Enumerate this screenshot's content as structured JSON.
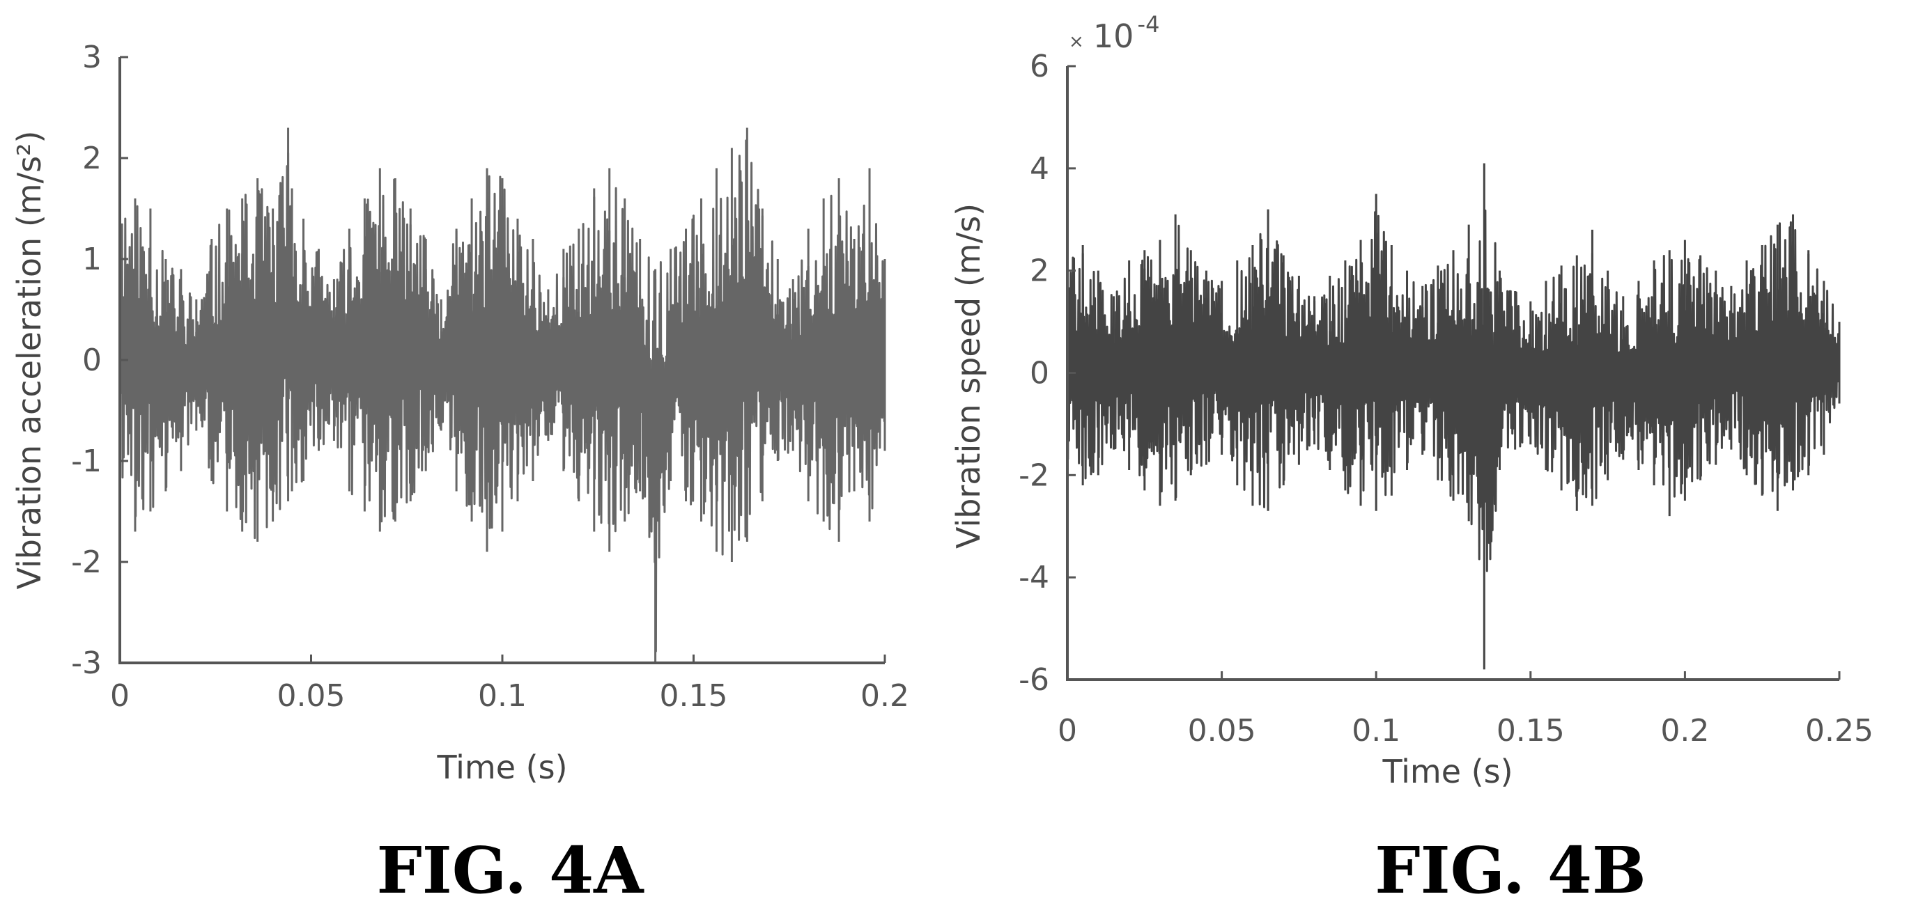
{
  "chart_data": [
    {
      "type": "line",
      "figure_label": "FIG. 4A",
      "xlabel": "Time (s)",
      "ylabel": "Vibration acceleration (m/s²)",
      "xlim": [
        0,
        0.2
      ],
      "ylim": [
        -3,
        3
      ],
      "x_ticks": [
        0,
        0.05,
        0.1,
        0.15,
        0.2
      ],
      "x_tick_labels": [
        "0",
        "0.05",
        "0.1",
        "0.15",
        "0.2"
      ],
      "y_ticks": [
        -3,
        -2,
        -1,
        0,
        1,
        2,
        3
      ],
      "y_tick_labels": [
        "-3",
        "-2",
        "-1",
        "0",
        "1",
        "2",
        "3"
      ],
      "color": "#666666",
      "series": [
        {
          "x": [
            0,
            0.004,
            0.008,
            0.012,
            0.016,
            0.02,
            0.024,
            0.028,
            0.032,
            0.036,
            0.04,
            0.044,
            0.045,
            0.048,
            0.052,
            0.056,
            0.06,
            0.064,
            0.068,
            0.072,
            0.076,
            0.08,
            0.084,
            0.088,
            0.092,
            0.096,
            0.1,
            0.104,
            0.108,
            0.112,
            0.116,
            0.12,
            0.124,
            0.128,
            0.132,
            0.136,
            0.14,
            0.144,
            0.148,
            0.152,
            0.156,
            0.16,
            0.164,
            0.168,
            0.172,
            0.176,
            0.18,
            0.184,
            0.188,
            0.192,
            0.196,
            0.2
          ],
          "upper": [
            1.9,
            1.6,
            1.5,
            1.0,
            0.9,
            0.6,
            1.2,
            1.5,
            1.6,
            1.8,
            1.5,
            2.3,
            1.7,
            1.4,
            1.1,
            0.8,
            1.3,
            1.6,
            1.9,
            1.8,
            1.5,
            1.2,
            0.6,
            1.3,
            1.6,
            1.9,
            1.8,
            1.4,
            1.2,
            0.7,
            1.1,
            1.3,
            1.7,
            1.9,
            1.6,
            1.2,
            0.9,
            1.1,
            1.3,
            1.6,
            1.9,
            2.1,
            2.3,
            1.5,
            1.0,
            0.8,
            1.3,
            1.6,
            1.8,
            1.2,
            1.9,
            1.0
          ],
          "lower": [
            -1.4,
            -1.7,
            -1.5,
            -1.3,
            -1.1,
            -0.7,
            -1.2,
            -1.5,
            -1.7,
            -1.8,
            -1.6,
            -1.4,
            -1.3,
            -1.2,
            -0.9,
            -0.8,
            -1.3,
            -1.5,
            -1.7,
            -1.6,
            -1.4,
            -1.1,
            -0.7,
            -1.3,
            -1.6,
            -1.9,
            -1.7,
            -1.4,
            -1.2,
            -0.8,
            -1.1,
            -1.4,
            -1.7,
            -1.9,
            -1.6,
            -1.3,
            -3.0,
            -1.2,
            -1.4,
            -1.6,
            -1.9,
            -2.0,
            -1.8,
            -1.4,
            -1.0,
            -0.9,
            -1.4,
            -1.6,
            -1.8,
            -1.3,
            -1.6,
            -0.9
          ]
        }
      ]
    },
    {
      "type": "line",
      "figure_label": "FIG. 4B",
      "xlabel": "Time (s)",
      "ylabel": "Vibration speed (m/s)",
      "xlim": [
        0,
        0.25
      ],
      "ylim": [
        -6,
        6
      ],
      "y_exponent_base": "10",
      "y_exponent_power": "-4",
      "x_ticks": [
        0,
        0.05,
        0.1,
        0.15,
        0.2,
        0.25
      ],
      "x_tick_labels": [
        "0",
        "0.05",
        "0.1",
        "0.15",
        "0.2",
        "0.25"
      ],
      "y_ticks": [
        -6,
        -4,
        -2,
        0,
        2,
        4,
        6
      ],
      "y_tick_labels": [
        "-6",
        "-4",
        "-2",
        "0",
        "2",
        "4",
        "6"
      ],
      "color": "#444444",
      "series": [
        {
          "x": [
            0,
            0.005,
            0.01,
            0.015,
            0.02,
            0.025,
            0.03,
            0.035,
            0.04,
            0.045,
            0.05,
            0.055,
            0.06,
            0.065,
            0.07,
            0.075,
            0.08,
            0.085,
            0.09,
            0.095,
            0.1,
            0.105,
            0.11,
            0.115,
            0.12,
            0.125,
            0.13,
            0.135,
            0.14,
            0.145,
            0.15,
            0.155,
            0.16,
            0.165,
            0.17,
            0.175,
            0.18,
            0.185,
            0.19,
            0.195,
            0.2,
            0.205,
            0.21,
            0.215,
            0.22,
            0.225,
            0.23,
            0.235,
            0.24,
            0.245,
            0.25
          ],
          "upper": [
            2.3,
            2.5,
            2.0,
            1.5,
            2.2,
            2.4,
            2.6,
            3.1,
            2.4,
            2.0,
            1.8,
            2.2,
            2.5,
            3.2,
            2.3,
            1.9,
            1.5,
            1.9,
            2.2,
            2.6,
            3.5,
            2.5,
            2.0,
            1.7,
            2.1,
            2.4,
            2.9,
            4.1,
            2.0,
            1.6,
            1.4,
            1.8,
            2.1,
            2.3,
            2.8,
            2.0,
            1.5,
            1.8,
            2.2,
            2.4,
            2.6,
            2.3,
            2.0,
            1.7,
            2.2,
            2.5,
            2.9,
            3.1,
            2.4,
            1.8,
            1.0
          ],
          "lower": [
            -1.9,
            -2.2,
            -2.0,
            -1.5,
            -1.9,
            -2.3,
            -2.6,
            -2.5,
            -2.0,
            -1.8,
            -1.6,
            -2.2,
            -2.6,
            -2.7,
            -2.2,
            -1.8,
            -1.4,
            -1.9,
            -2.3,
            -2.6,
            -2.7,
            -2.4,
            -1.9,
            -1.6,
            -2.1,
            -2.5,
            -2.9,
            -5.8,
            -1.9,
            -1.5,
            -1.4,
            -1.9,
            -2.3,
            -2.7,
            -2.6,
            -2.1,
            -1.7,
            -1.9,
            -2.2,
            -2.8,
            -2.5,
            -2.1,
            -1.8,
            -1.5,
            -2.0,
            -2.4,
            -2.7,
            -2.3,
            -2.0,
            -1.6,
            -0.6
          ]
        }
      ]
    }
  ]
}
